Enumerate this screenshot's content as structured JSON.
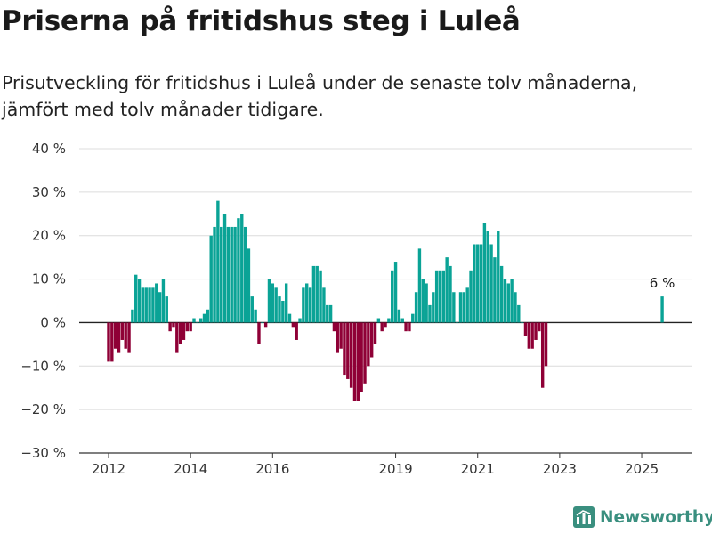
{
  "title": "Priserna på fritidshus steg i Luleå",
  "subtitle": "Prisutveckling för fritidshus i Luleå under de senaste tolv månaderna, jämfört med tolv månader tidigare.",
  "brand": {
    "name": "Newsworthy",
    "icon": "newsworthy-logo-icon",
    "color": "#3a8f7f"
  },
  "chart_data": {
    "type": "bar",
    "title": "",
    "xlabel": "",
    "ylabel": "",
    "ylim": [
      -30,
      40
    ],
    "yticks": [
      -30,
      -20,
      -10,
      0,
      10,
      20,
      30,
      40
    ],
    "ytick_labels": [
      "−30 %",
      "−20 %",
      "−10 %",
      "0 %",
      "10 %",
      "20 %",
      "30 %",
      "40 %"
    ],
    "xticks": [
      "2012",
      "2014",
      "2016",
      "2019",
      "2021",
      "2023",
      "2025"
    ],
    "grid": true,
    "colors": {
      "positive": "#0aa396",
      "negative": "#8f0036",
      "grid": "#dcdcdc",
      "zero": "#222222"
    },
    "annotation": {
      "x": "2025-07",
      "text": "6 %"
    },
    "x": [
      "2012-01",
      "2012-02",
      "2012-03",
      "2012-04",
      "2012-05",
      "2012-06",
      "2012-07",
      "2012-08",
      "2012-09",
      "2012-10",
      "2012-11",
      "2012-12",
      "2013-01",
      "2013-02",
      "2013-03",
      "2013-04",
      "2013-05",
      "2013-06",
      "2013-07",
      "2013-08",
      "2013-09",
      "2013-10",
      "2013-11",
      "2013-12",
      "2014-01",
      "2014-02",
      "2014-03",
      "2014-04",
      "2014-05",
      "2014-06",
      "2014-07",
      "2014-08",
      "2014-09",
      "2014-10",
      "2014-11",
      "2014-12",
      "2015-01",
      "2015-02",
      "2015-03",
      "2015-04",
      "2015-05",
      "2015-06",
      "2015-07",
      "2015-08",
      "2015-09",
      "2015-10",
      "2015-11",
      "2015-12",
      "2016-01",
      "2016-02",
      "2016-03",
      "2016-04",
      "2016-05",
      "2016-06",
      "2016-07",
      "2016-08",
      "2016-09",
      "2016-10",
      "2016-11",
      "2016-12",
      "2017-01",
      "2017-02",
      "2017-03",
      "2017-04",
      "2017-05",
      "2017-06",
      "2017-07",
      "2017-08",
      "2017-09",
      "2017-10",
      "2017-11",
      "2017-12",
      "2018-01",
      "2018-02",
      "2018-03",
      "2018-04",
      "2018-05",
      "2018-06",
      "2018-07",
      "2018-08",
      "2018-09",
      "2018-10",
      "2018-11",
      "2018-12",
      "2019-01",
      "2019-02",
      "2019-03",
      "2019-04",
      "2019-05",
      "2019-06",
      "2019-07",
      "2019-08",
      "2019-09",
      "2019-10",
      "2019-11",
      "2019-12",
      "2020-01",
      "2020-02",
      "2020-03",
      "2020-04",
      "2020-05",
      "2020-06",
      "2020-07",
      "2020-08",
      "2020-09",
      "2020-10",
      "2020-11",
      "2020-12",
      "2021-01",
      "2021-02",
      "2021-03",
      "2021-04",
      "2021-05",
      "2021-06",
      "2021-07",
      "2021-08",
      "2021-09",
      "2021-10",
      "2021-11",
      "2021-12",
      "2022-01",
      "2022-02",
      "2022-03",
      "2022-04",
      "2022-05",
      "2022-06",
      "2022-07",
      "2022-08",
      "2022-09",
      "2022-10",
      "2022-11",
      "2022-12",
      "2023-01",
      "2023-02",
      "2023-03",
      "2023-04",
      "2023-05",
      "2023-06",
      "2023-07",
      "2023-08",
      "2023-09",
      "2023-10",
      "2023-11",
      "2023-12",
      "2024-01",
      "2024-02",
      "2024-03",
      "2024-04",
      "2024-05",
      "2024-06",
      "2024-07",
      "2024-08",
      "2024-09",
      "2024-10",
      "2024-11",
      "2024-12",
      "2025-01",
      "2025-02",
      "2025-03",
      "2025-04",
      "2025-05",
      "2025-06",
      "2025-07"
    ],
    "values": [
      -9,
      -9,
      -6,
      -7,
      -4,
      -6,
      -7,
      3,
      11,
      10,
      8,
      8,
      8,
      8,
      9,
      7,
      10,
      6,
      -2,
      -1,
      -7,
      -5,
      -4,
      -2,
      -2,
      1,
      0,
      1,
      2,
      3,
      20,
      22,
      28,
      22,
      25,
      22,
      22,
      22,
      24,
      25,
      22,
      17,
      6,
      3,
      -5,
      0,
      -1,
      10,
      9,
      8,
      6,
      5,
      9,
      2,
      -1,
      -4,
      1,
      8,
      9,
      8,
      13,
      13,
      12,
      8,
      4,
      4,
      -2,
      -7,
      -6,
      -12,
      -13,
      -15,
      -18,
      -18,
      -16,
      -14,
      -10,
      -8,
      -5,
      1,
      -2,
      -1,
      1,
      12,
      14,
      3,
      1,
      -2,
      -2,
      2,
      7,
      17,
      10,
      9,
      4,
      7,
      12,
      12,
      12,
      15,
      13,
      7,
      0,
      7,
      7,
      8,
      12,
      18,
      18,
      18,
      23,
      21,
      18,
      15,
      21,
      13,
      10,
      9,
      10,
      7,
      4,
      0,
      -3,
      -6,
      -6,
      -4,
      -2,
      -15,
      -10,
      null,
      null,
      null,
      null,
      null,
      null,
      null,
      null,
      null,
      null,
      null,
      null,
      null,
      null,
      null,
      null,
      null,
      null,
      null,
      null,
      null,
      null,
      null,
      null,
      null,
      null,
      null,
      null,
      null,
      null,
      null,
      null,
      null,
      6
    ]
  }
}
